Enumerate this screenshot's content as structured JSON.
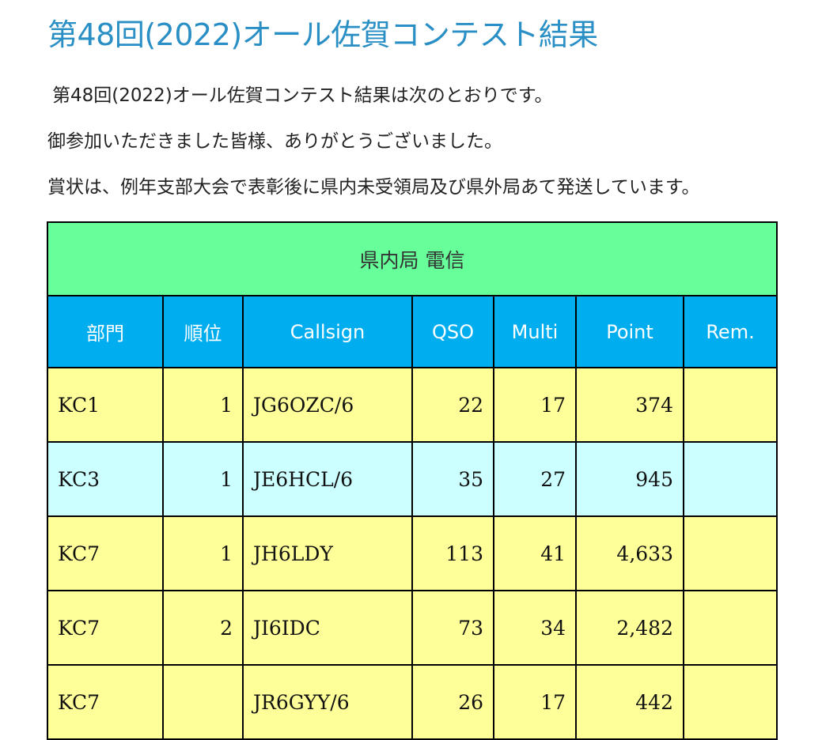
{
  "page": {
    "title": "第48回(2022)オール佐賀コンテスト結果",
    "paragraphs": [
      "第48回(2022)オール佐賀コンテスト結果は次のとおりです。",
      "御参加いただきました皆様、ありがとうございました。",
      "賞状は、例年支部大会で表彰後に県内未受領局及び県外局あて発送しています。"
    ]
  },
  "table": {
    "caption": "県内局 電信",
    "headers": [
      "部門",
      "順位",
      "Callsign",
      "QSO",
      "Multi",
      "Point",
      "Rem."
    ],
    "rows": [
      {
        "category": "KC1",
        "rank": "1",
        "callsign": "JG6OZC/6",
        "qso": "22",
        "multi": "17",
        "point": "374",
        "rem": "",
        "row_color": "#ffff99"
      },
      {
        "category": "KC3",
        "rank": "1",
        "callsign": "JE6HCL/6",
        "qso": "35",
        "multi": "27",
        "point": "945",
        "rem": "",
        "row_color": "#ccffff"
      },
      {
        "category": "KC7",
        "rank": "1",
        "callsign": "JH6LDY",
        "qso": "113",
        "multi": "41",
        "point": "4,633",
        "rem": "",
        "row_color": "#ffff99"
      },
      {
        "category": "KC7",
        "rank": "2",
        "callsign": "JI6IDC",
        "qso": "73",
        "multi": "34",
        "point": "2,482",
        "rem": "",
        "row_color": "#ffff99"
      },
      {
        "category": "KC7",
        "rank": "",
        "callsign": "JR6GYY/6",
        "qso": "26",
        "multi": "17",
        "point": "442",
        "rem": "",
        "row_color": "#ffff99"
      }
    ]
  },
  "colors": {
    "title": "#2a8fc4",
    "caption_bg": "#66ff99",
    "header_bg": "#00aeef",
    "row_yellow": "#ffff99",
    "row_cyan": "#ccffff"
  }
}
